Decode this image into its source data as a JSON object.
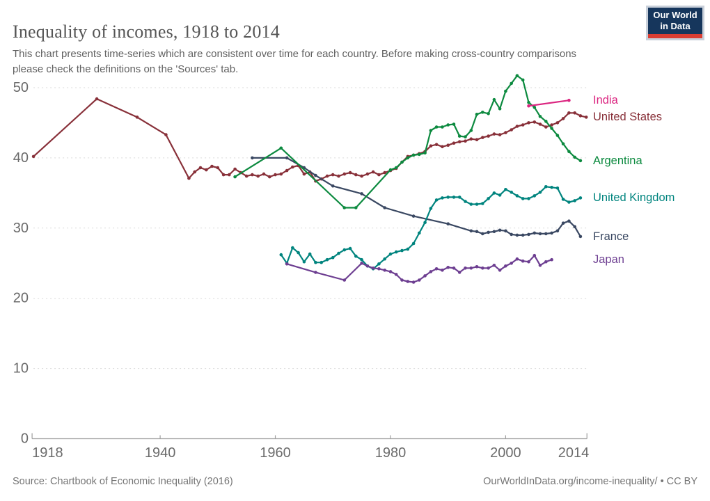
{
  "header": {
    "title": "Inequality of incomes, 1918 to 2014",
    "subtitle": "This chart presents time-series which are consistent over time for each country. Before making cross-country comparisons please check the definitions on the 'Sources' tab.",
    "logo": {
      "line1": "Our World",
      "line2": "in Data",
      "bg_color": "#16365c",
      "bar_color": "#da3d32"
    }
  },
  "footer": {
    "source": "Source: Chartbook of Economic Inequality (2016)",
    "link": "OurWorldInData.org/income-inequality/",
    "separator": "•",
    "license": "CC BY"
  },
  "chart_data": {
    "type": "line",
    "title": "Inequality of incomes, 1918 to 2014",
    "xlabel": "",
    "ylabel": "",
    "xlim": [
      1918,
      2014
    ],
    "ylim": [
      0,
      52
    ],
    "x_ticks": [
      1918,
      1940,
      1960,
      1980,
      2000,
      2014
    ],
    "y_ticks": [
      0,
      10,
      20,
      30,
      40,
      50
    ],
    "grid": "dashed-horizontal",
    "legend_position": "right-edge-labels",
    "axis_color": "#9e9e9e",
    "grid_color": "#d9d9d9",
    "tick_label_color": "#6b6b6b",
    "series": [
      {
        "name": "United States",
        "color": "#883039",
        "points": [
          [
            1918,
            40.2
          ],
          [
            1929,
            48.4
          ],
          [
            1936,
            45.8
          ],
          [
            1941,
            43.3
          ],
          [
            1945,
            37.1
          ],
          [
            1946,
            38.0
          ],
          [
            1947,
            38.6
          ],
          [
            1948,
            38.3
          ],
          [
            1949,
            38.8
          ],
          [
            1950,
            38.6
          ],
          [
            1951,
            37.6
          ],
          [
            1952,
            37.6
          ],
          [
            1953,
            38.4
          ],
          [
            1954,
            37.9
          ],
          [
            1955,
            37.4
          ],
          [
            1956,
            37.6
          ],
          [
            1957,
            37.4
          ],
          [
            1958,
            37.7
          ],
          [
            1959,
            37.3
          ],
          [
            1960,
            37.6
          ],
          [
            1961,
            37.7
          ],
          [
            1962,
            38.2
          ],
          [
            1963,
            38.7
          ],
          [
            1964,
            38.9
          ],
          [
            1965,
            37.7
          ],
          [
            1966,
            38.0
          ],
          [
            1967,
            36.7
          ],
          [
            1968,
            37.0
          ],
          [
            1969,
            37.4
          ],
          [
            1970,
            37.6
          ],
          [
            1971,
            37.4
          ],
          [
            1972,
            37.7
          ],
          [
            1973,
            37.9
          ],
          [
            1974,
            37.6
          ],
          [
            1975,
            37.4
          ],
          [
            1976,
            37.7
          ],
          [
            1977,
            38.0
          ],
          [
            1978,
            37.6
          ],
          [
            1979,
            37.9
          ],
          [
            1980,
            38.2
          ],
          [
            1981,
            38.5
          ],
          [
            1982,
            39.4
          ],
          [
            1983,
            40.2
          ],
          [
            1984,
            40.4
          ],
          [
            1985,
            40.6
          ],
          [
            1986,
            40.9
          ],
          [
            1987,
            41.7
          ],
          [
            1988,
            41.9
          ],
          [
            1989,
            41.6
          ],
          [
            1990,
            41.8
          ],
          [
            1991,
            42.1
          ],
          [
            1992,
            42.3
          ],
          [
            1993,
            42.4
          ],
          [
            1994,
            42.7
          ],
          [
            1995,
            42.6
          ],
          [
            1996,
            42.9
          ],
          [
            1997,
            43.1
          ],
          [
            1998,
            43.4
          ],
          [
            1999,
            43.3
          ],
          [
            2000,
            43.6
          ],
          [
            2001,
            44.0
          ],
          [
            2002,
            44.5
          ],
          [
            2003,
            44.7
          ],
          [
            2004,
            45.0
          ],
          [
            2005,
            45.1
          ],
          [
            2006,
            44.8
          ],
          [
            2007,
            44.4
          ],
          [
            2008,
            44.7
          ],
          [
            2009,
            45.0
          ],
          [
            2010,
            45.6
          ],
          [
            2011,
            46.4
          ],
          [
            2012,
            46.4
          ],
          [
            2013,
            46.0
          ],
          [
            2014,
            45.8
          ]
        ]
      },
      {
        "name": "France",
        "color": "#3a4862",
        "points": [
          [
            1956,
            40.0
          ],
          [
            1962,
            40.0
          ],
          [
            1965,
            38.6
          ],
          [
            1967,
            37.5
          ],
          [
            1970,
            36.0
          ],
          [
            1975,
            34.9
          ],
          [
            1979,
            32.9
          ],
          [
            1984,
            31.7
          ],
          [
            1990,
            30.6
          ],
          [
            1994,
            29.6
          ],
          [
            1995,
            29.5
          ],
          [
            1996,
            29.2
          ],
          [
            1997,
            29.4
          ],
          [
            1998,
            29.5
          ],
          [
            1999,
            29.7
          ],
          [
            2000,
            29.6
          ],
          [
            2001,
            29.1
          ],
          [
            2002,
            29.0
          ],
          [
            2003,
            29.0
          ],
          [
            2004,
            29.1
          ],
          [
            2005,
            29.3
          ],
          [
            2006,
            29.2
          ],
          [
            2007,
            29.2
          ],
          [
            2008,
            29.3
          ],
          [
            2009,
            29.6
          ],
          [
            2010,
            30.7
          ],
          [
            2011,
            31.0
          ],
          [
            2012,
            30.2
          ],
          [
            2013,
            28.8
          ]
        ]
      },
      {
        "name": "United Kingdom",
        "color": "#00847e",
        "points": [
          [
            1961,
            26.2
          ],
          [
            1962,
            25.0
          ],
          [
            1963,
            27.2
          ],
          [
            1964,
            26.5
          ],
          [
            1965,
            25.2
          ],
          [
            1966,
            26.3
          ],
          [
            1967,
            25.1
          ],
          [
            1968,
            25.1
          ],
          [
            1969,
            25.5
          ],
          [
            1970,
            25.8
          ],
          [
            1971,
            26.4
          ],
          [
            1972,
            26.9
          ],
          [
            1973,
            27.1
          ],
          [
            1974,
            26.0
          ],
          [
            1975,
            25.5
          ],
          [
            1976,
            24.6
          ],
          [
            1977,
            24.2
          ],
          [
            1978,
            24.9
          ],
          [
            1979,
            25.6
          ],
          [
            1980,
            26.3
          ],
          [
            1981,
            26.6
          ],
          [
            1982,
            26.8
          ],
          [
            1983,
            27.0
          ],
          [
            1984,
            27.8
          ],
          [
            1985,
            29.3
          ],
          [
            1986,
            30.8
          ],
          [
            1987,
            32.8
          ],
          [
            1988,
            34.0
          ],
          [
            1989,
            34.3
          ],
          [
            1990,
            34.4
          ],
          [
            1991,
            34.4
          ],
          [
            1992,
            34.4
          ],
          [
            1993,
            33.8
          ],
          [
            1994,
            33.4
          ],
          [
            1995,
            33.4
          ],
          [
            1996,
            33.5
          ],
          [
            1997,
            34.2
          ],
          [
            1998,
            35.0
          ],
          [
            1999,
            34.7
          ],
          [
            2000,
            35.5
          ],
          [
            2001,
            35.1
          ],
          [
            2002,
            34.6
          ],
          [
            2003,
            34.2
          ],
          [
            2004,
            34.2
          ],
          [
            2005,
            34.6
          ],
          [
            2006,
            35.1
          ],
          [
            2007,
            35.9
          ],
          [
            2008,
            35.8
          ],
          [
            2009,
            35.7
          ],
          [
            2010,
            34.1
          ],
          [
            2011,
            33.7
          ],
          [
            2012,
            33.9
          ],
          [
            2013,
            34.3
          ]
        ]
      },
      {
        "name": "Japan",
        "color": "#6d3e91",
        "points": [
          [
            1962,
            24.9
          ],
          [
            1967,
            23.7
          ],
          [
            1972,
            22.6
          ],
          [
            1975,
            25.0
          ],
          [
            1976,
            24.6
          ],
          [
            1977,
            24.3
          ],
          [
            1978,
            24.2
          ],
          [
            1979,
            24.0
          ],
          [
            1980,
            23.8
          ],
          [
            1981,
            23.4
          ],
          [
            1982,
            22.6
          ],
          [
            1983,
            22.4
          ],
          [
            1984,
            22.3
          ],
          [
            1985,
            22.6
          ],
          [
            1986,
            23.2
          ],
          [
            1987,
            23.8
          ],
          [
            1988,
            24.2
          ],
          [
            1989,
            24.0
          ],
          [
            1990,
            24.4
          ],
          [
            1991,
            24.3
          ],
          [
            1992,
            23.7
          ],
          [
            1993,
            24.3
          ],
          [
            1994,
            24.3
          ],
          [
            1995,
            24.5
          ],
          [
            1996,
            24.3
          ],
          [
            1997,
            24.3
          ],
          [
            1998,
            24.7
          ],
          [
            1999,
            24.0
          ],
          [
            2000,
            24.6
          ],
          [
            2001,
            25.0
          ],
          [
            2002,
            25.6
          ],
          [
            2003,
            25.3
          ],
          [
            2004,
            25.2
          ],
          [
            2005,
            26.1
          ],
          [
            2006,
            24.7
          ],
          [
            2007,
            25.2
          ],
          [
            2008,
            25.5
          ]
        ]
      },
      {
        "name": "Argentina",
        "color": "#0c8a3f",
        "points": [
          [
            1953,
            37.3
          ],
          [
            1961,
            41.4
          ],
          [
            1972,
            32.9
          ],
          [
            1974,
            32.9
          ],
          [
            1980,
            38.3
          ],
          [
            1981,
            38.6
          ],
          [
            1982,
            39.4
          ],
          [
            1983,
            40.0
          ],
          [
            1984,
            40.4
          ],
          [
            1985,
            40.5
          ],
          [
            1986,
            40.7
          ],
          [
            1987,
            43.9
          ],
          [
            1988,
            44.4
          ],
          [
            1989,
            44.4
          ],
          [
            1990,
            44.7
          ],
          [
            1991,
            44.8
          ],
          [
            1992,
            43.1
          ],
          [
            1993,
            43.0
          ],
          [
            1994,
            43.9
          ],
          [
            1995,
            46.2
          ],
          [
            1996,
            46.5
          ],
          [
            1997,
            46.3
          ],
          [
            1998,
            48.3
          ],
          [
            1999,
            47.0
          ],
          [
            2000,
            49.5
          ],
          [
            2001,
            50.6
          ],
          [
            2002,
            51.7
          ],
          [
            2003,
            51.1
          ],
          [
            2004,
            47.9
          ],
          [
            2005,
            47.2
          ],
          [
            2006,
            45.9
          ],
          [
            2007,
            45.2
          ],
          [
            2008,
            44.2
          ],
          [
            2009,
            43.2
          ],
          [
            2010,
            42.0
          ],
          [
            2011,
            40.9
          ],
          [
            2012,
            40.1
          ],
          [
            2013,
            39.6
          ]
        ]
      },
      {
        "name": "India",
        "color": "#db2580",
        "points": [
          [
            2004,
            47.4
          ],
          [
            2011,
            48.2
          ]
        ]
      }
    ]
  }
}
